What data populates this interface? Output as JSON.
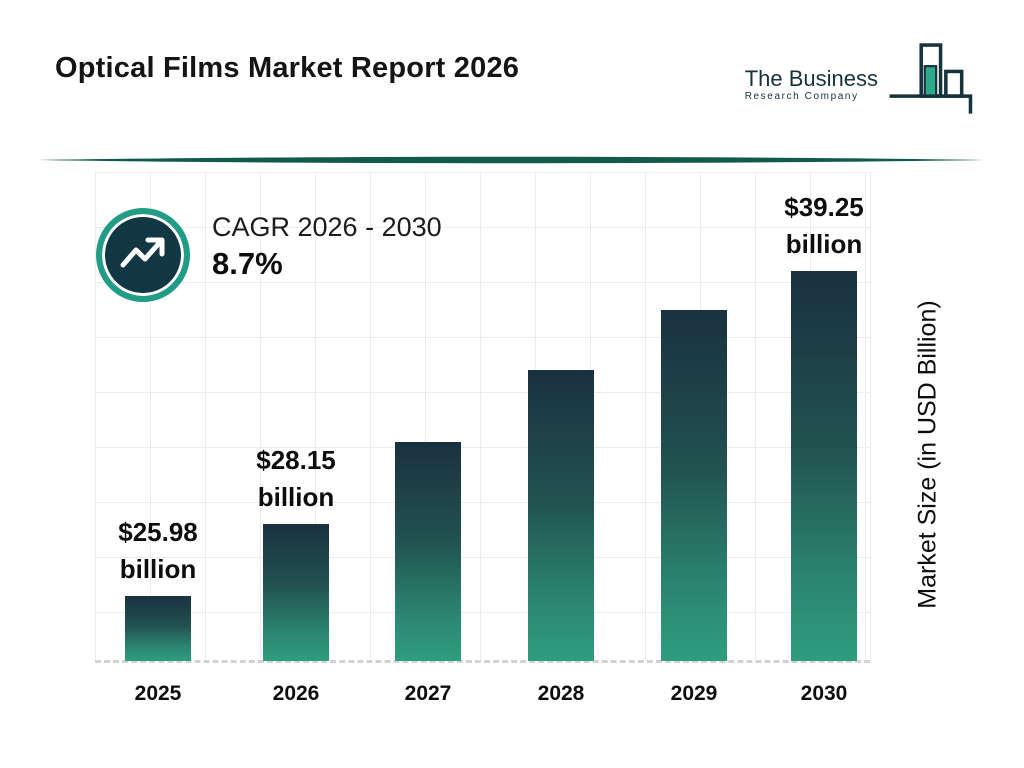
{
  "header": {
    "title": "Optical Films Market Report 2026",
    "logo": {
      "name": "The Business",
      "tagline": "Research Company"
    }
  },
  "cagr": {
    "label": "CAGR 2026 - 2030",
    "value": "8.7%"
  },
  "chart_data": {
    "type": "bar",
    "title": "Optical Films Market Report 2026",
    "categories": [
      "2025",
      "2026",
      "2027",
      "2028",
      "2029",
      "2030"
    ],
    "values": [
      25.98,
      28.15,
      30.6,
      33.26,
      36.16,
      39.25
    ],
    "estimated_values": [
      false,
      false,
      true,
      true,
      true,
      false
    ],
    "bar_labels": [
      "$25.98 billion",
      "$28.15 billion",
      null,
      null,
      null,
      "$39.25 billion"
    ],
    "xlabel": "",
    "ylabel": "Market Size (in USD Billion)",
    "unit": "USD Billion",
    "cagr_percent": 8.7,
    "cagr_period": "2026 - 2030",
    "ylim": [
      23,
      40
    ],
    "grid": true,
    "legend": false,
    "bar_gradient": [
      "#1a313f",
      "#2f9d7f"
    ]
  },
  "colors": {
    "accent_teal": "#219c87",
    "dark_navy": "#123744",
    "divider": "#135a4e",
    "grid": "#ececec",
    "text": "#111111"
  }
}
